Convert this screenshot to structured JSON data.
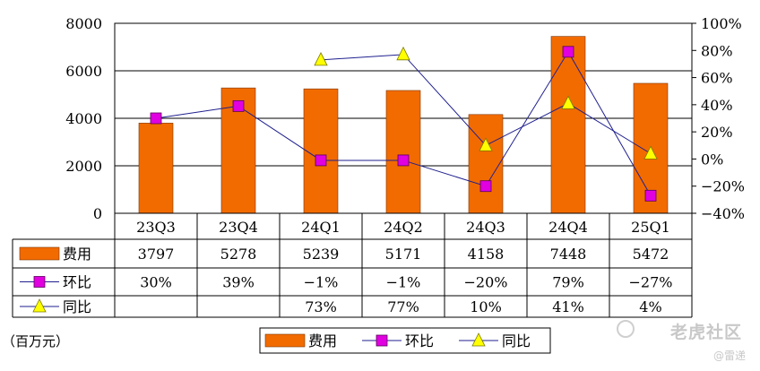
{
  "chart_data": {
    "type": "bar",
    "categories": [
      "23Q3",
      "23Q4",
      "24Q1",
      "24Q2",
      "24Q3",
      "24Q4",
      "25Q1"
    ],
    "unit_note": "（百万元）",
    "y_left": {
      "min": 0,
      "max": 8000,
      "ticks": [
        "0",
        "2000",
        "4000",
        "6000",
        "8000"
      ]
    },
    "y_right": {
      "min": -40,
      "max": 100,
      "ticks": [
        "-40%",
        "-20%",
        "0%",
        "20%",
        "40%",
        "60%",
        "80%",
        "100%"
      ]
    },
    "grid": true,
    "legend_position": "bottom-center",
    "series": [
      {
        "name": "费用",
        "kind": "bar",
        "axis": "left",
        "color": "#f26b00",
        "values": [
          3797,
          5278,
          5239,
          5171,
          4158,
          7448,
          5472
        ],
        "labels": [
          "3797",
          "5278",
          "5239",
          "5171",
          "4158",
          "7448",
          "5472"
        ]
      },
      {
        "name": "环比",
        "kind": "line",
        "axis": "right",
        "color": "#e000e0",
        "line_color": "#1f1f8f",
        "marker": "square",
        "values": [
          30,
          39,
          -1,
          -1,
          -20,
          79,
          -27
        ],
        "labels": [
          "30%",
          "39%",
          "-1%",
          "-1%",
          "-20%",
          "79%",
          "-27%"
        ]
      },
      {
        "name": "同比",
        "kind": "line",
        "axis": "right",
        "color": "#ffff00",
        "line_color": "#1f1f8f",
        "marker": "triangle",
        "values": [
          null,
          null,
          73,
          77,
          10,
          41,
          4
        ],
        "labels": [
          "",
          "",
          "73%",
          "77%",
          "10%",
          "41%",
          "4%"
        ]
      }
    ]
  },
  "watermark": {
    "text": "老虎社区",
    "sub": "@雷递"
  }
}
